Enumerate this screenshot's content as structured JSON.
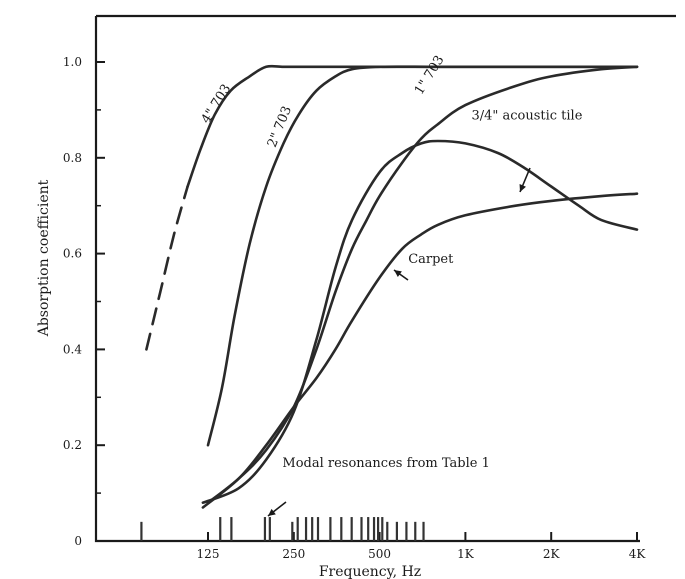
{
  "chart_data": {
    "type": "line",
    "title": "",
    "xlabel": "Frequency, Hz",
    "ylabel": "Absorption coefficient",
    "x_scale": "log",
    "xlim": [
      60,
      4000
    ],
    "ylim": [
      0,
      1.1
    ],
    "x_ticks": [
      125,
      250,
      500,
      1000,
      2000,
      4000
    ],
    "x_tick_labels": [
      "125",
      "250",
      "500",
      "1K",
      "2K",
      "4K"
    ],
    "y_ticks": [
      0,
      0.2,
      0.4,
      0.6,
      0.8,
      1.0
    ],
    "y_tick_labels": [
      "0",
      "0.2",
      "0.4",
      "0.6",
      "0.8",
      "1.0"
    ],
    "grid": false,
    "series": [
      {
        "name": "4\" 703",
        "dashed_until": 100,
        "x": [
          76,
          85,
          95,
          106,
          118,
          132,
          150,
          175,
          200,
          230,
          280,
          400,
          700,
          1500,
          4000
        ],
        "y": [
          0.4,
          0.52,
          0.64,
          0.74,
          0.82,
          0.89,
          0.94,
          0.97,
          0.99,
          0.99,
          0.99,
          0.99,
          0.99,
          0.99,
          0.99
        ]
      },
      {
        "name": "2\" 703",
        "x": [
          125,
          140,
          155,
          175,
          200,
          230,
          260,
          300,
          350,
          400,
          500,
          800,
          1500,
          4000
        ],
        "y": [
          0.2,
          0.32,
          0.47,
          0.62,
          0.74,
          0.83,
          0.89,
          0.94,
          0.97,
          0.985,
          0.99,
          0.99,
          0.99,
          0.99
        ]
      },
      {
        "name": "1\" 703",
        "x": [
          125,
          160,
          200,
          250,
          300,
          350,
          400,
          450,
          500,
          600,
          700,
          800,
          1000,
          1500,
          2000,
          3000,
          4000
        ],
        "y": [
          0.08,
          0.13,
          0.19,
          0.28,
          0.4,
          0.52,
          0.61,
          0.67,
          0.72,
          0.79,
          0.84,
          0.87,
          0.91,
          0.95,
          0.97,
          0.985,
          0.99
        ]
      },
      {
        "name": "3/4\" acoustic tile",
        "x": [
          120,
          160,
          200,
          250,
          300,
          350,
          400,
          500,
          600,
          700,
          800,
          1000,
          1300,
          1600,
          2000,
          2500,
          3000,
          4000
        ],
        "y": [
          0.08,
          0.11,
          0.17,
          0.27,
          0.42,
          0.57,
          0.67,
          0.77,
          0.81,
          0.83,
          0.835,
          0.83,
          0.81,
          0.78,
          0.74,
          0.7,
          0.67,
          0.65
        ]
      },
      {
        "name": "Carpet",
        "x": [
          120,
          160,
          200,
          250,
          300,
          350,
          400,
          500,
          600,
          700,
          800,
          1000,
          1500,
          2000,
          3000,
          4000
        ],
        "y": [
          0.07,
          0.13,
          0.2,
          0.28,
          0.34,
          0.4,
          0.46,
          0.55,
          0.61,
          0.64,
          0.66,
          0.68,
          0.7,
          0.71,
          0.72,
          0.725
        ]
      }
    ],
    "annotations": [
      {
        "text": "4\" 703",
        "x": 125,
        "y": 0.87,
        "rotate": -58
      },
      {
        "text": "2\" 703",
        "x": 215,
        "y": 0.82,
        "rotate": -68
      },
      {
        "text": "1\" 703",
        "x": 700,
        "y": 0.93,
        "rotate": -58
      },
      {
        "text": "3/4\" acoustic tile",
        "x": 1050,
        "y": 0.88,
        "rotate": 0
      },
      {
        "text": "Carpet",
        "x": 630,
        "y": 0.58,
        "rotate": 0
      },
      {
        "text": "Modal resonances from Table 1",
        "x": 228,
        "y": 0.155,
        "rotate": 0
      }
    ],
    "modal_resonances_hz": [
      73,
      138,
      151,
      198,
      206,
      247,
      258,
      276,
      290,
      304,
      336,
      367,
      399,
      432,
      456,
      478,
      494,
      511,
      532,
      575,
      621,
      667,
      713
    ],
    "modal_resonance_heights": [
      0.04,
      0.05,
      0.05,
      0.05,
      0.05,
      0.04,
      0.05,
      0.05,
      0.05,
      0.05,
      0.05,
      0.05,
      0.05,
      0.05,
      0.05,
      0.05,
      0.05,
      0.05,
      0.04,
      0.04,
      0.04,
      0.04,
      0.04
    ]
  }
}
